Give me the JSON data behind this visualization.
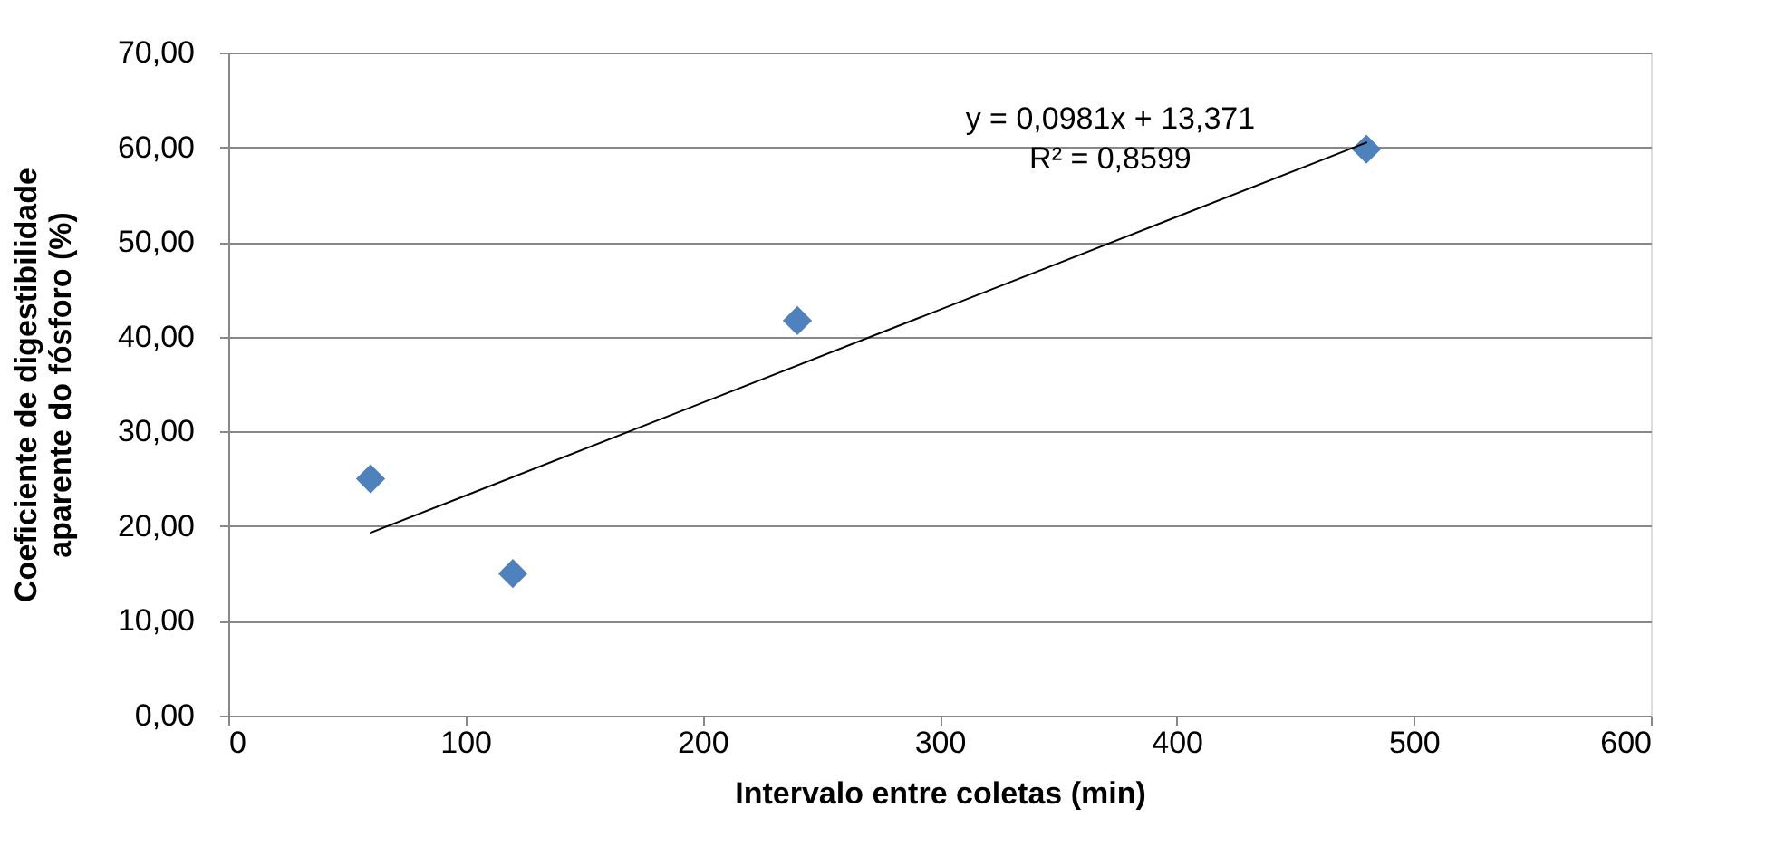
{
  "chart_data": {
    "type": "scatter",
    "xlabel": "Intervalo entre coletas (min)",
    "ylabel": "Coeficiente de digestibilidade aparente do fósforo (%)",
    "series": [
      {
        "color": "#4f81bd",
        "marker": "diamond",
        "x": [
          60,
          120,
          240,
          480
        ],
        "values": [
          25.0,
          15.0,
          41.7,
          59.8
        ]
      },
      {
        "type": "line",
        "color": "#000000",
        "marker": "none",
        "line_style": "solid",
        "x": [
          60,
          480
        ],
        "values": [
          19.3,
          60.5
        ]
      }
    ],
    "xlim": [
      0,
      600
    ],
    "xticks": [
      0,
      100,
      200,
      300,
      400,
      500,
      600
    ],
    "ylim": [
      0,
      70
    ],
    "yticks": [
      {
        "value": 0,
        "label": "0,00"
      },
      {
        "value": 10,
        "label": "10,00"
      },
      {
        "value": 20,
        "label": "20,00"
      },
      {
        "value": 30,
        "label": "30,00"
      },
      {
        "value": 40,
        "label": "40,00"
      },
      {
        "value": 50,
        "label": "50,00"
      },
      {
        "value": 60,
        "label": "60,00"
      },
      {
        "value": 70,
        "label": "70,00"
      }
    ],
    "grid": "y",
    "annotations": [
      "y = 0,0981x + 13,371",
      "R² = 0,8599"
    ]
  }
}
